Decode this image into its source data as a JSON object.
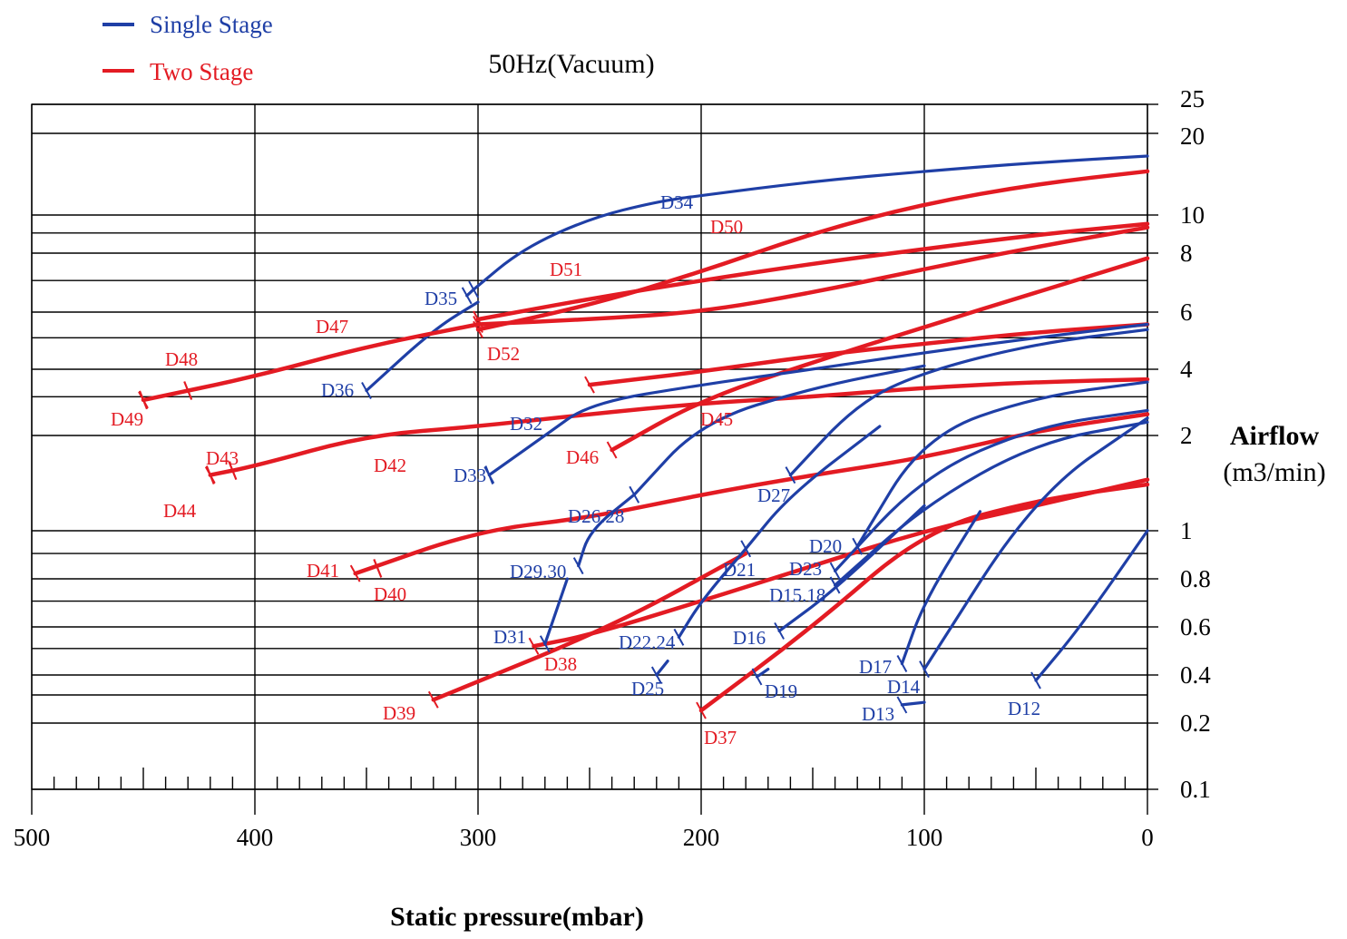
{
  "chart_data": {
    "type": "line",
    "title": "50Hz(Vacuum)",
    "xlabel": "Static pressure(mbar)",
    "ylabel_line1": "Airflow",
    "ylabel_line2": "(m3/min)",
    "xlim": [
      500,
      0
    ],
    "y_scale": "log",
    "x_ticks": [
      500,
      400,
      300,
      200,
      100,
      0
    ],
    "y_tick_labels": [
      {
        "label": "25",
        "value": 25
      },
      {
        "label": "20",
        "value": 20
      },
      {
        "label": "10",
        "value": 10
      },
      {
        "label": "8",
        "value": 8
      },
      {
        "label": "6",
        "value": 6
      },
      {
        "label": "4",
        "value": 4
      },
      {
        "label": "2",
        "value": 2
      },
      {
        "label": "1",
        "value": 1
      },
      {
        "label": "0.8",
        "value": 0.8
      },
      {
        "label": "0.6",
        "value": 0.6
      },
      {
        "label": "0.4",
        "value": 0.4
      },
      {
        "label": "0.2",
        "value": 0.2
      },
      {
        "label": "0.1",
        "value": 0.1
      }
    ],
    "grid": true,
    "legend_position": "top-left",
    "legend": [
      {
        "name": "Single Stage",
        "color": "#1f3fa6"
      },
      {
        "name": "Two Stage",
        "color": "#e31b23"
      }
    ],
    "series": [
      {
        "name": "D34",
        "stage": "single",
        "color": "#1f3fa6",
        "x": [
          0,
          50,
          100,
          150,
          200,
          220,
          250,
          280,
          302
        ],
        "y": [
          16.5,
          15.6,
          14.5,
          13.3,
          11.8,
          11.2,
          9.8,
          8.2,
          6.7
        ]
      },
      {
        "name": "D35",
        "stage": "single",
        "color": "#1f3fa6",
        "x": [
          302,
          305
        ],
        "y": [
          6.7,
          6.5
        ]
      },
      {
        "name": "D36",
        "stage": "single",
        "color": "#1f3fa6",
        "x": [
          300,
          320,
          350
        ],
        "y": [
          6.3,
          5.3,
          3.2
        ]
      },
      {
        "name": "D50",
        "stage": "two",
        "color": "#e31b23",
        "x": [
          0,
          50,
          100,
          150,
          200,
          250,
          300
        ],
        "y": [
          14.5,
          13,
          11,
          9,
          7.3,
          6.2,
          5.3
        ]
      },
      {
        "name": "D51",
        "stage": "two",
        "color": "#e31b23",
        "x": [
          0,
          50,
          100,
          150,
          200,
          250,
          300
        ],
        "y": [
          9.5,
          8.9,
          8.2,
          7.6,
          7.0,
          6.4,
          5.7
        ]
      },
      {
        "name": "D52",
        "stage": "two",
        "color": "#e31b23",
        "x": [
          0,
          50,
          100,
          150,
          200,
          250,
          300
        ],
        "y": [
          9.3,
          8.3,
          7.4,
          6.6,
          6.0,
          5.7,
          5.5
        ]
      },
      {
        "name": "D47",
        "stage": "two",
        "color": "#e31b23",
        "x": [
          300,
          350,
          400,
          450
        ],
        "y": [
          5.5,
          4.7,
          3.7,
          2.9
        ]
      },
      {
        "name": "D48",
        "stage": "two",
        "color": "#e31b23",
        "x": [
          430,
          430
        ],
        "y": [
          3.2,
          3.2
        ]
      },
      {
        "name": "D49",
        "stage": "two",
        "color": "#e31b23",
        "x": [
          450,
          450
        ],
        "y": [
          2.9,
          2.9
        ]
      },
      {
        "name": "D45",
        "stage": "two",
        "color": "#e31b23",
        "x": [
          0,
          50,
          100,
          150,
          200,
          250
        ],
        "y": [
          5.5,
          5.2,
          4.8,
          4.4,
          3.9,
          3.4
        ]
      },
      {
        "name": "D46",
        "stage": "two",
        "color": "#e31b23",
        "x": [
          0,
          50,
          100,
          150,
          200,
          240
        ],
        "y": [
          7.8,
          6.6,
          5.4,
          4.2,
          2.9,
          1.8
        ]
      },
      {
        "name": "D42",
        "stage": "two",
        "color": "#e31b23",
        "x": [
          0,
          50,
          100,
          150,
          200,
          250,
          300,
          350,
          400,
          420
        ],
        "y": [
          3.6,
          3.5,
          3.3,
          3.0,
          2.8,
          2.5,
          2.2,
          2.0,
          1.6,
          1.5
        ]
      },
      {
        "name": "D43",
        "stage": "two",
        "color": "#e31b23",
        "x": [
          410,
          410
        ],
        "y": [
          1.55,
          1.55
        ]
      },
      {
        "name": "D44",
        "stage": "two",
        "color": "#e31b23",
        "x": [
          420,
          420
        ],
        "y": [
          1.5,
          1.5
        ]
      },
      {
        "name": "D40",
        "stage": "two",
        "color": "#e31b23",
        "x": [
          0,
          50,
          100,
          150,
          200,
          250,
          300,
          355
        ],
        "y": [
          2.5,
          2.1,
          1.7,
          1.5,
          1.3,
          1.1,
          1.0,
          0.82
        ]
      },
      {
        "name": "D41",
        "stage": "two",
        "color": "#e31b23",
        "x": [
          345,
          345
        ],
        "y": [
          0.84,
          0.84
        ]
      },
      {
        "name": "D38",
        "stage": "two",
        "color": "#e31b23",
        "x": [
          0,
          50,
          100,
          150,
          200,
          250,
          275
        ],
        "y": [
          1.45,
          1.2,
          1.0,
          0.85,
          0.7,
          0.56,
          0.51
        ]
      },
      {
        "name": "D39",
        "stage": "two",
        "color": "#e31b23",
        "x": [
          180,
          240,
          320
        ],
        "y": [
          0.9,
          0.6,
          0.28
        ]
      },
      {
        "name": "D37",
        "stage": "two",
        "color": "#e31b23",
        "x": [
          0,
          50,
          100,
          150,
          200
        ],
        "y": [
          1.4,
          1.25,
          1.0,
          0.6,
          0.24
        ]
      },
      {
        "name": "D32",
        "stage": "single",
        "color": "#1f3fa6",
        "x": [
          0,
          50,
          100,
          150,
          200,
          250,
          270,
          295
        ],
        "y": [
          5.5,
          5.0,
          4.5,
          4.0,
          3.4,
          2.8,
          2.0,
          1.5
        ]
      },
      {
        "name": "D33",
        "stage": "single",
        "color": "#1f3fa6",
        "x": [
          295,
          295
        ],
        "y": [
          1.5,
          1.5
        ]
      },
      {
        "name": "D27",
        "stage": "single",
        "color": "#1f3fa6",
        "x": [
          0,
          50,
          100,
          130,
          160
        ],
        "y": [
          5.3,
          4.8,
          3.9,
          2.8,
          1.5
        ]
      },
      {
        "name": "D26.28",
        "stage": "single",
        "color": "#1f3fa6",
        "x": [
          100,
          150,
          200,
          230
        ],
        "y": [
          4.1,
          3.3,
          2.3,
          1.3
        ]
      },
      {
        "name": "D29.30",
        "stage": "single",
        "color": "#1f3fa6",
        "x": [
          230,
          250,
          255
        ],
        "y": [
          1.3,
          1.0,
          0.85
        ]
      },
      {
        "name": "D31",
        "stage": "single",
        "color": "#1f3fa6",
        "x": [
          260,
          270
        ],
        "y": [
          0.8,
          0.52
        ]
      },
      {
        "name": "D20",
        "stage": "single",
        "color": "#1f3fa6",
        "x": [
          0,
          50,
          100,
          130
        ],
        "y": [
          3.5,
          3.0,
          2.0,
          0.93
        ]
      },
      {
        "name": "D21",
        "stage": "single",
        "color": "#1f3fa6",
        "x": [
          120,
          160,
          180
        ],
        "y": [
          2.2,
          1.3,
          0.92
        ]
      },
      {
        "name": "D22.24",
        "stage": "single",
        "color": "#1f3fa6",
        "x": [
          180,
          200,
          210
        ],
        "y": [
          0.92,
          0.7,
          0.55
        ]
      },
      {
        "name": "D25",
        "stage": "single",
        "color": "#1f3fa6",
        "x": [
          215,
          220
        ],
        "y": [
          0.45,
          0.4
        ]
      },
      {
        "name": "D23",
        "stage": "single",
        "color": "#1f3fa6",
        "x": [
          0,
          50,
          100,
          140
        ],
        "y": [
          2.6,
          2.2,
          1.5,
          0.83
        ]
      },
      {
        "name": "D15.18",
        "stage": "single",
        "color": "#1f3fa6",
        "x": [
          0,
          50,
          100,
          140
        ],
        "y": [
          2.3,
          1.9,
          1.2,
          0.77
        ]
      },
      {
        "name": "D16",
        "stage": "single",
        "color": "#1f3fa6",
        "x": [
          100,
          140,
          165
        ],
        "y": [
          1.2,
          0.75,
          0.58
        ]
      },
      {
        "name": "D19",
        "stage": "single",
        "color": "#1f3fa6",
        "x": [
          170,
          175
        ],
        "y": [
          0.42,
          0.39
        ]
      },
      {
        "name": "D17",
        "stage": "single",
        "color": "#1f3fa6",
        "x": [
          75,
          100,
          110
        ],
        "y": [
          1.15,
          0.7,
          0.44
        ]
      },
      {
        "name": "D14",
        "stage": "single",
        "color": "#1f3fa6",
        "x": [
          0,
          50,
          100
        ],
        "y": [
          2.4,
          1.3,
          0.42
        ]
      },
      {
        "name": "D13",
        "stage": "single",
        "color": "#1f3fa6",
        "x": [
          100,
          110
        ],
        "y": [
          0.27,
          0.26
        ]
      },
      {
        "name": "D12",
        "stage": "single",
        "color": "#1f3fa6",
        "x": [
          0,
          30,
          50
        ],
        "y": [
          1.0,
          0.6,
          0.37
        ]
      }
    ]
  }
}
